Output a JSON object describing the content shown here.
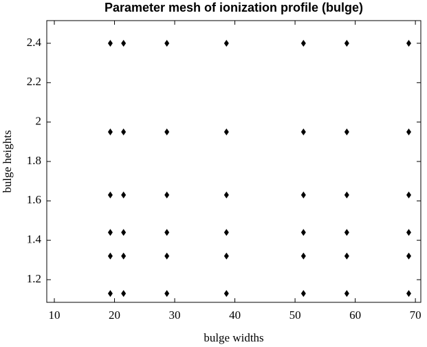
{
  "chart_data": {
    "type": "scatter",
    "title": "Parameter mesh of ionization profile (bulge)",
    "xlabel": "bulge widths",
    "ylabel": "bulge heights",
    "xlim": [
      8.74,
      70.9
    ],
    "ylim": [
      1.085,
      2.515
    ],
    "xticks": [
      10,
      20,
      30,
      40,
      50,
      60,
      70
    ],
    "yticks": [
      1.2,
      1.4,
      1.6,
      1.8,
      2,
      2.2,
      2.4
    ],
    "series": [
      {
        "color": "#000000",
        "x": [
          19.3,
          21.5,
          28.7,
          38.6,
          51.4,
          58.6,
          68.9,
          19.3,
          21.5,
          28.7,
          38.6,
          51.4,
          58.6,
          68.9,
          19.3,
          21.5,
          28.7,
          38.6,
          51.4,
          58.6,
          68.9,
          19.3,
          21.5,
          28.7,
          38.6,
          51.4,
          58.6,
          68.9,
          19.3,
          21.5,
          28.7,
          38.6,
          51.4,
          58.6,
          68.9,
          19.3,
          21.5,
          28.7,
          38.6,
          51.4,
          58.6,
          68.9
        ],
        "values": [
          1.13,
          1.13,
          1.13,
          1.13,
          1.13,
          1.13,
          1.13,
          1.32,
          1.32,
          1.32,
          1.32,
          1.32,
          1.32,
          1.32,
          1.44,
          1.44,
          1.44,
          1.44,
          1.44,
          1.44,
          1.44,
          1.63,
          1.63,
          1.63,
          1.63,
          1.63,
          1.63,
          1.63,
          1.95,
          1.95,
          1.95,
          1.95,
          1.95,
          1.95,
          1.95,
          2.4,
          2.4,
          2.4,
          2.4,
          2.4,
          2.4,
          2.4
        ]
      }
    ]
  }
}
